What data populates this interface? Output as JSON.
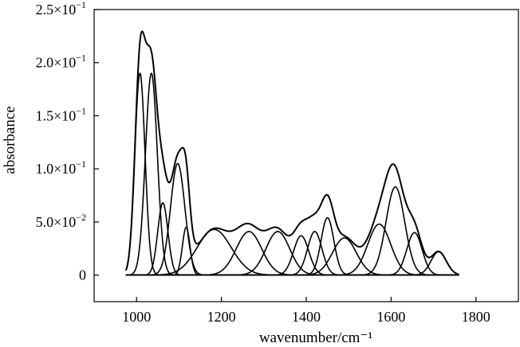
{
  "chart_data": {
    "type": "line",
    "xlabel": "wavenumber/cm⁻¹",
    "ylabel": "absorbance",
    "xlim": [
      900,
      1900
    ],
    "ylim": [
      -0.025,
      0.25
    ],
    "grid": false,
    "legend": "none",
    "x_ticks": [
      {
        "value": 1000,
        "label": "1000"
      },
      {
        "value": 1200,
        "label": "1200"
      },
      {
        "value": 1400,
        "label": "1400"
      },
      {
        "value": 1600,
        "label": "1600"
      },
      {
        "value": 1800,
        "label": "1800"
      }
    ],
    "y_ticks": [
      {
        "value": 0,
        "label": "0",
        "mant": "",
        "exp": ""
      },
      {
        "value": 0.05,
        "label": "5.0×10⁻²",
        "mant": "5.0×10",
        "exp": "−2"
      },
      {
        "value": 0.1,
        "label": "1.0×10⁻¹",
        "mant": "1.0×10",
        "exp": "−1"
      },
      {
        "value": 0.15,
        "label": "1.5×10⁻¹",
        "mant": "1.5×10",
        "exp": "−1"
      },
      {
        "value": 0.2,
        "label": "2.0×10⁻¹",
        "mant": "2.0×10",
        "exp": "−1"
      },
      {
        "value": 0.25,
        "label": "2.5×10⁻¹",
        "mant": "2.5×10",
        "exp": "−1"
      }
    ],
    "range": [
      975,
      1760
    ],
    "peaks": [
      {
        "center": 1008,
        "height": 0.19,
        "width": 12
      },
      {
        "center": 1035,
        "height": 0.19,
        "width": 14
      },
      {
        "center": 1062,
        "height": 0.068,
        "width": 12
      },
      {
        "center": 1097,
        "height": 0.105,
        "width": 17
      },
      {
        "center": 1117,
        "height": 0.045,
        "width": 9
      },
      {
        "center": 1183,
        "height": 0.043,
        "width": 40
      },
      {
        "center": 1265,
        "height": 0.041,
        "width": 30
      },
      {
        "center": 1333,
        "height": 0.041,
        "width": 28
      },
      {
        "center": 1388,
        "height": 0.037,
        "width": 18
      },
      {
        "center": 1420,
        "height": 0.041,
        "width": 17
      },
      {
        "center": 1450,
        "height": 0.054,
        "width": 15
      },
      {
        "center": 1490,
        "height": 0.035,
        "width": 28
      },
      {
        "center": 1572,
        "height": 0.048,
        "width": 27
      },
      {
        "center": 1610,
        "height": 0.083,
        "width": 22
      },
      {
        "center": 1655,
        "height": 0.04,
        "width": 18
      },
      {
        "center": 1712,
        "height": 0.022,
        "width": 18
      }
    ]
  }
}
